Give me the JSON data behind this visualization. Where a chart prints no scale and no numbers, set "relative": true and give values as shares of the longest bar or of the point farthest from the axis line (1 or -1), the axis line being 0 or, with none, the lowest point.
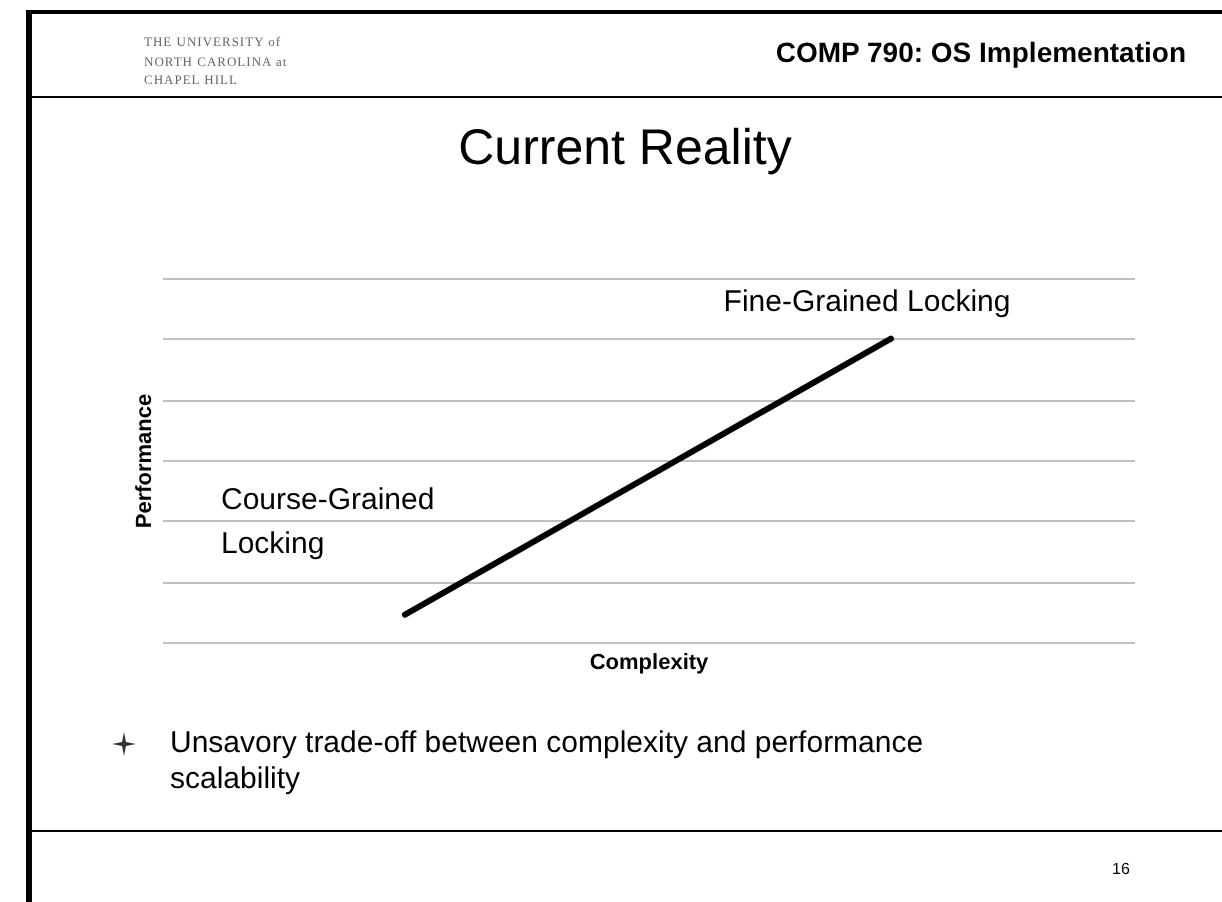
{
  "chart_data": {
    "type": "line",
    "title": "Current Reality",
    "xlabel": "Complexity",
    "ylabel": "Performance",
    "relative": true,
    "grid": "y",
    "categories": [
      null,
      null,
      null,
      null,
      null
    ],
    "series": [
      {
        "color": "#000000",
        "values": [
          null,
          0.09,
          null,
          1,
          null
        ]
      }
    ],
    "annotations": [
      "Fine-Grained Locking",
      "Course-Grained Locking",
      "THE UNIVERSITY of NORTH CAROLINA at CHAPEL HILL",
      "COMP 790: OS Implementation",
      "Unsavory trade-off between complexity and performance scalability",
      "16"
    ]
  }
}
